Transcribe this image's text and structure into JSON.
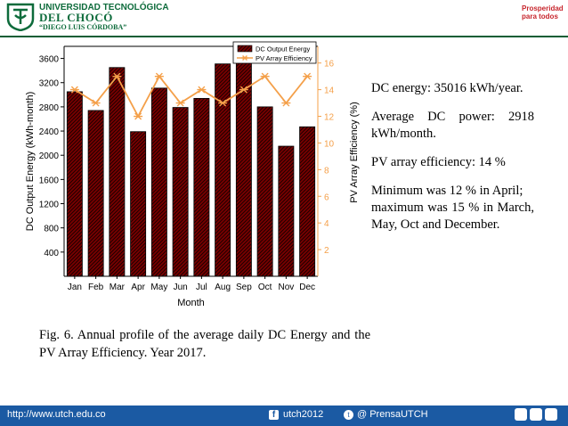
{
  "header": {
    "university_line1": "UNIVERSIDAD TECNOLÓGICA",
    "university_line2": "DEL CHOCÓ",
    "university_line3": "“DIEGO LUIS CÓRDOBA”",
    "right_logo_line1": "Prosperidad",
    "right_logo_line2": "para todos",
    "brand_color": "#0d6b3b",
    "right_logo_color": "#c7252c"
  },
  "info": {
    "dc_energy": "DC energy: 35016 kWh/year.",
    "avg_power": "Average DC power: 2918 kWh/month.",
    "pv_efficiency": "PV array efficiency: 14 %",
    "minimum": "Minimum was 12 % in April;",
    "maximum": "maximum was 15 % in March, May, Oct and December."
  },
  "caption": "Fig. 6. Annual profile of the average daily DC Energy and the PV Array Efficiency. Year 2017.",
  "footer": {
    "url": "http://www.utch.edu.co",
    "facebook": "utch2012",
    "twitter": "@ PrensaUTCH",
    "bar_color": "#1b5aa3"
  },
  "chart_data": {
    "type": "bar",
    "categories": [
      "Jan",
      "Feb",
      "Mar",
      "Apr",
      "May",
      "Jun",
      "Jul",
      "Aug",
      "Sep",
      "Oct",
      "Nov",
      "Dec"
    ],
    "series": [
      {
        "name": "DC Output Energy",
        "type": "bar",
        "axis": "left",
        "color": "#7a0000",
        "values": [
          3050,
          2740,
          3450,
          2390,
          3110,
          2790,
          2940,
          3510,
          3600,
          2800,
          2150,
          2470
        ]
      },
      {
        "name": "PV Array Efficiency",
        "type": "line",
        "axis": "right",
        "color": "#f4a04a",
        "values": [
          14,
          13,
          15,
          12,
          15,
          13,
          14,
          13,
          14,
          15,
          13,
          15
        ]
      }
    ],
    "xlabel": "Month",
    "ylabel": "DC Output Energy (kWh-month)",
    "y2label": "PV Array Efficiency (%)",
    "ylim": [
      0,
      3800
    ],
    "yticks": [
      400,
      800,
      1200,
      1600,
      2000,
      2400,
      2800,
      3200,
      3600
    ],
    "y2lim": [
      0,
      17.25
    ],
    "y2ticks": [
      2,
      4,
      6,
      8,
      10,
      12,
      14,
      16
    ],
    "legend_position": "top-right",
    "grid": false
  }
}
